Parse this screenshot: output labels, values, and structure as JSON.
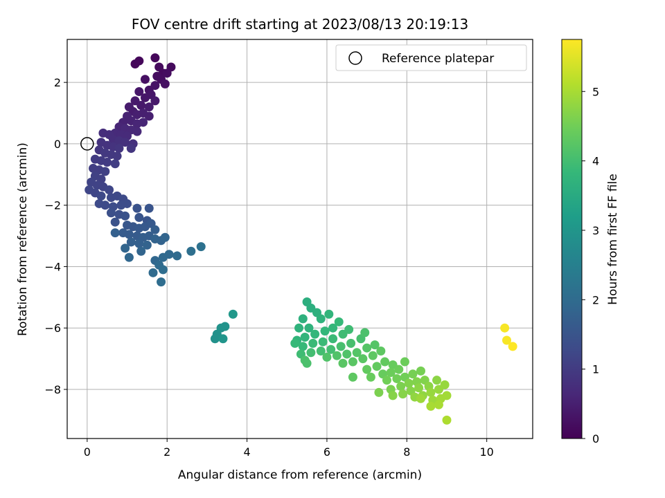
{
  "chart_data": {
    "type": "scatter",
    "title": "FOV centre drift starting at 2023/08/13 20:19:13",
    "xlabel": "Angular distance from reference (arcmin)",
    "ylabel": "Rotation from reference (arcmin)",
    "xlim": [
      -0.5,
      11.15
    ],
    "ylim": [
      -9.6,
      3.4
    ],
    "xticks": [
      0,
      2,
      4,
      6,
      8,
      10
    ],
    "yticks": [
      -8,
      -6,
      -4,
      -2,
      0,
      2
    ],
    "grid": true,
    "legend": {
      "position": "top-right",
      "entries": [
        "Reference platepar"
      ]
    },
    "reference_point": {
      "x": 0,
      "y": 0,
      "marker": "open-circle"
    },
    "colorbar": {
      "label": "Hours from first FF file",
      "range": [
        0,
        5.75
      ],
      "ticks": [
        0,
        1,
        2,
        3,
        4,
        5
      ],
      "colormap": "viridis"
    },
    "series": [
      {
        "colored_by": "hours",
        "points": [
          [
            1.2,
            2.6,
            0.1
          ],
          [
            1.3,
            2.7,
            0.1
          ],
          [
            1.7,
            2.8,
            0.1
          ],
          [
            1.8,
            2.5,
            0.15
          ],
          [
            1.9,
            2.3,
            0.15
          ],
          [
            2.1,
            2.5,
            0.15
          ],
          [
            1.75,
            2.2,
            0.2
          ],
          [
            1.85,
            2.1,
            0.2
          ],
          [
            2.0,
            2.3,
            0.2
          ],
          [
            1.95,
            1.95,
            0.25
          ],
          [
            1.45,
            2.1,
            0.25
          ],
          [
            1.7,
            1.9,
            0.3
          ],
          [
            1.55,
            1.75,
            0.3
          ],
          [
            1.3,
            1.7,
            0.35
          ],
          [
            1.45,
            1.5,
            0.35
          ],
          [
            1.6,
            1.6,
            0.35
          ],
          [
            1.7,
            1.4,
            0.4
          ],
          [
            1.2,
            1.4,
            0.4
          ],
          [
            1.35,
            1.25,
            0.4
          ],
          [
            1.55,
            1.2,
            0.45
          ],
          [
            1.05,
            1.2,
            0.45
          ],
          [
            1.15,
            1.05,
            0.45
          ],
          [
            1.25,
            0.95,
            0.5
          ],
          [
            1.4,
            1.0,
            0.5
          ],
          [
            1.55,
            0.9,
            0.5
          ],
          [
            1.0,
            0.9,
            0.55
          ],
          [
            0.9,
            0.7,
            0.55
          ],
          [
            1.1,
            0.75,
            0.55
          ],
          [
            1.25,
            0.65,
            0.6
          ],
          [
            1.4,
            0.7,
            0.6
          ],
          [
            0.8,
            0.55,
            0.6
          ],
          [
            0.95,
            0.5,
            0.65
          ],
          [
            1.1,
            0.45,
            0.65
          ],
          [
            1.25,
            0.4,
            0.65
          ],
          [
            0.7,
            0.35,
            0.7
          ],
          [
            0.85,
            0.3,
            0.7
          ],
          [
            1.0,
            0.25,
            0.7
          ],
          [
            0.4,
            0.35,
            0.75
          ],
          [
            0.55,
            0.3,
            0.75
          ],
          [
            0.65,
            0.15,
            0.75
          ],
          [
            0.8,
            0.1,
            0.8
          ],
          [
            0.95,
            0.05,
            0.8
          ],
          [
            1.15,
            0.0,
            0.8
          ],
          [
            0.35,
            0.05,
            0.85
          ],
          [
            0.5,
            -0.05,
            0.85
          ],
          [
            0.65,
            -0.1,
            0.85
          ],
          [
            0.8,
            -0.15,
            0.9
          ],
          [
            1.1,
            -0.15,
            0.9
          ],
          [
            0.3,
            -0.2,
            0.9
          ],
          [
            0.45,
            -0.3,
            0.95
          ],
          [
            0.6,
            -0.35,
            0.95
          ],
          [
            0.75,
            -0.4,
            0.95
          ],
          [
            0.2,
            -0.5,
            1.0
          ],
          [
            0.35,
            -0.55,
            1.0
          ],
          [
            0.5,
            -0.6,
            1.0
          ],
          [
            0.7,
            -0.65,
            1.05
          ],
          [
            0.15,
            -0.8,
            1.05
          ],
          [
            0.3,
            -0.85,
            1.05
          ],
          [
            0.45,
            -0.9,
            1.1
          ],
          [
            0.2,
            -1.05,
            1.1
          ],
          [
            0.35,
            -1.15,
            1.1
          ],
          [
            0.1,
            -1.25,
            1.15
          ],
          [
            0.25,
            -1.35,
            1.15
          ],
          [
            0.4,
            -1.4,
            1.15
          ],
          [
            0.55,
            -1.5,
            1.2
          ],
          [
            0.05,
            -1.5,
            1.2
          ],
          [
            0.2,
            -1.6,
            1.2
          ],
          [
            0.35,
            -1.7,
            1.25
          ],
          [
            0.6,
            -1.75,
            1.25
          ],
          [
            0.75,
            -1.7,
            1.25
          ],
          [
            0.9,
            -1.8,
            1.3
          ],
          [
            0.3,
            -1.95,
            1.3
          ],
          [
            0.45,
            -2.0,
            1.3
          ],
          [
            0.65,
            -2.05,
            1.35
          ],
          [
            0.85,
            -2.0,
            1.35
          ],
          [
            1.0,
            -1.95,
            1.35
          ],
          [
            0.6,
            -2.25,
            1.4
          ],
          [
            0.8,
            -2.3,
            1.4
          ],
          [
            0.95,
            -2.35,
            1.45
          ],
          [
            0.7,
            -2.55,
            1.45
          ],
          [
            1.25,
            -2.1,
            1.45
          ],
          [
            1.55,
            -2.1,
            1.5
          ],
          [
            1.3,
            -2.4,
            1.5
          ],
          [
            1.5,
            -2.5,
            1.5
          ],
          [
            1.0,
            -2.65,
            1.55
          ],
          [
            1.15,
            -2.7,
            1.55
          ],
          [
            1.3,
            -2.75,
            1.6
          ],
          [
            1.45,
            -2.7,
            1.6
          ],
          [
            1.6,
            -2.6,
            1.6
          ],
          [
            0.9,
            -2.9,
            1.65
          ],
          [
            1.05,
            -2.95,
            1.65
          ],
          [
            1.25,
            -3.0,
            1.65
          ],
          [
            1.4,
            -3.05,
            1.7
          ],
          [
            1.55,
            -3.0,
            1.7
          ],
          [
            1.7,
            -2.8,
            1.7
          ],
          [
            0.7,
            -2.9,
            1.75
          ],
          [
            1.1,
            -3.2,
            1.75
          ],
          [
            1.3,
            -3.25,
            1.75
          ],
          [
            1.5,
            -3.3,
            1.8
          ],
          [
            1.7,
            -3.1,
            1.8
          ],
          [
            1.85,
            -3.15,
            1.8
          ],
          [
            1.95,
            -3.05,
            1.85
          ],
          [
            0.95,
            -3.4,
            1.85
          ],
          [
            1.35,
            -3.5,
            1.85
          ],
          [
            1.05,
            -3.7,
            1.9
          ],
          [
            1.7,
            -3.8,
            1.9
          ],
          [
            1.9,
            -3.7,
            1.95
          ],
          [
            2.05,
            -3.6,
            1.95
          ],
          [
            2.25,
            -3.65,
            2.0
          ],
          [
            1.8,
            -3.95,
            2.0
          ],
          [
            1.65,
            -4.2,
            2.0
          ],
          [
            1.85,
            -4.5,
            2.05
          ],
          [
            1.9,
            -4.1,
            2.05
          ],
          [
            2.6,
            -3.5,
            2.1
          ],
          [
            2.85,
            -3.35,
            2.15
          ],
          [
            3.25,
            -6.2,
            2.9
          ],
          [
            3.2,
            -6.35,
            2.9
          ],
          [
            3.35,
            -6.0,
            2.95
          ],
          [
            3.45,
            -5.95,
            2.95
          ],
          [
            3.4,
            -6.35,
            3.0
          ],
          [
            3.65,
            -5.55,
            3.05
          ],
          [
            5.5,
            -5.15,
            3.6
          ],
          [
            5.6,
            -5.35,
            3.6
          ],
          [
            5.4,
            -5.7,
            3.65
          ],
          [
            5.75,
            -5.5,
            3.65
          ],
          [
            5.3,
            -6.0,
            3.7
          ],
          [
            5.55,
            -6.0,
            3.7
          ],
          [
            5.85,
            -5.7,
            3.7
          ],
          [
            6.05,
            -5.55,
            3.75
          ],
          [
            5.25,
            -6.4,
            3.75
          ],
          [
            5.45,
            -6.3,
            3.75
          ],
          [
            5.7,
            -6.2,
            3.8
          ],
          [
            5.95,
            -6.1,
            3.8
          ],
          [
            6.15,
            -6.0,
            3.8
          ],
          [
            6.3,
            -5.8,
            3.85
          ],
          [
            5.2,
            -6.5,
            3.85
          ],
          [
            5.4,
            -6.6,
            3.85
          ],
          [
            5.65,
            -6.5,
            3.9
          ],
          [
            5.9,
            -6.45,
            3.9
          ],
          [
            6.15,
            -6.35,
            3.9
          ],
          [
            6.4,
            -6.2,
            3.95
          ],
          [
            6.55,
            -6.05,
            3.95
          ],
          [
            5.35,
            -6.85,
            3.95
          ],
          [
            5.6,
            -6.8,
            4.0
          ],
          [
            5.85,
            -6.75,
            4.0
          ],
          [
            6.1,
            -6.7,
            4.0
          ],
          [
            6.35,
            -6.6,
            4.05
          ],
          [
            6.6,
            -6.5,
            4.05
          ],
          [
            6.85,
            -6.35,
            4.05
          ],
          [
            6.95,
            -6.15,
            4.1
          ],
          [
            5.45,
            -7.05,
            4.1
          ],
          [
            5.5,
            -7.15,
            4.1
          ],
          [
            6.0,
            -6.95,
            4.15
          ],
          [
            6.25,
            -6.9,
            4.15
          ],
          [
            6.5,
            -6.85,
            4.15
          ],
          [
            6.75,
            -6.8,
            4.2
          ],
          [
            7.0,
            -6.65,
            4.2
          ],
          [
            7.2,
            -6.55,
            4.2
          ],
          [
            6.4,
            -7.15,
            4.25
          ],
          [
            6.65,
            -7.1,
            4.25
          ],
          [
            6.9,
            -7.0,
            4.25
          ],
          [
            7.15,
            -6.9,
            4.3
          ],
          [
            7.35,
            -6.75,
            4.3
          ],
          [
            6.65,
            -7.6,
            4.3
          ],
          [
            7.0,
            -7.35,
            4.35
          ],
          [
            7.25,
            -7.25,
            4.35
          ],
          [
            7.45,
            -7.1,
            4.35
          ],
          [
            7.65,
            -7.2,
            4.4
          ],
          [
            7.1,
            -7.6,
            4.4
          ],
          [
            7.4,
            -7.5,
            4.4
          ],
          [
            7.6,
            -7.45,
            4.45
          ],
          [
            7.8,
            -7.35,
            4.45
          ],
          [
            7.95,
            -7.1,
            4.45
          ],
          [
            7.5,
            -7.7,
            4.5
          ],
          [
            7.75,
            -7.65,
            4.5
          ],
          [
            7.95,
            -7.6,
            4.5
          ],
          [
            8.15,
            -7.5,
            4.55
          ],
          [
            8.35,
            -7.4,
            4.55
          ],
          [
            7.3,
            -8.1,
            4.6
          ],
          [
            7.6,
            -8.0,
            4.6
          ],
          [
            7.85,
            -7.9,
            4.6
          ],
          [
            8.05,
            -7.8,
            4.65
          ],
          [
            8.25,
            -7.75,
            4.65
          ],
          [
            8.45,
            -7.7,
            4.65
          ],
          [
            7.65,
            -8.2,
            4.7
          ],
          [
            7.9,
            -8.15,
            4.7
          ],
          [
            8.1,
            -8.05,
            4.7
          ],
          [
            8.3,
            -7.95,
            4.75
          ],
          [
            8.55,
            -7.9,
            4.75
          ],
          [
            8.75,
            -7.7,
            4.75
          ],
          [
            8.2,
            -8.25,
            4.8
          ],
          [
            8.4,
            -8.2,
            4.8
          ],
          [
            8.6,
            -8.1,
            4.85
          ],
          [
            8.8,
            -8.0,
            4.85
          ],
          [
            8.95,
            -7.85,
            4.85
          ],
          [
            8.35,
            -8.3,
            4.9
          ],
          [
            8.65,
            -8.35,
            4.9
          ],
          [
            8.85,
            -8.3,
            4.95
          ],
          [
            9.0,
            -8.2,
            4.95
          ],
          [
            8.8,
            -8.5,
            5.0
          ],
          [
            8.6,
            -8.55,
            5.0
          ],
          [
            9.0,
            -9.0,
            5.05
          ],
          [
            10.45,
            -6.0,
            5.7
          ],
          [
            10.5,
            -6.4,
            5.7
          ],
          [
            10.65,
            -6.6,
            5.75
          ]
        ]
      }
    ]
  }
}
